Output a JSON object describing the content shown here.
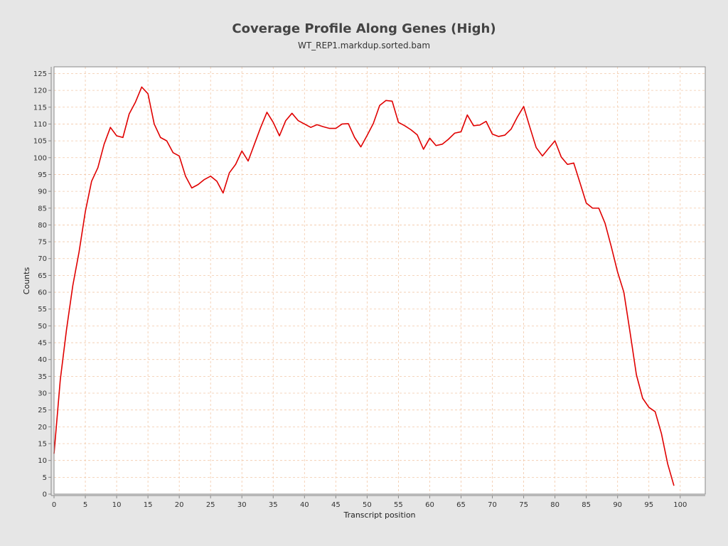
{
  "chart_data": {
    "type": "line",
    "title": "Coverage Profile Along Genes (High)",
    "subtitle": "WT_REP1.markdup.sorted.bam",
    "xlabel": "Transcript position",
    "ylabel": "Counts",
    "xlim": [
      0,
      104
    ],
    "ylim": [
      0,
      127
    ],
    "x_ticks": [
      0,
      5,
      10,
      15,
      20,
      25,
      30,
      35,
      40,
      45,
      50,
      55,
      60,
      65,
      70,
      75,
      80,
      85,
      90,
      95,
      100
    ],
    "y_ticks": [
      0,
      5,
      10,
      15,
      20,
      25,
      30,
      35,
      40,
      45,
      50,
      55,
      60,
      65,
      70,
      75,
      80,
      85,
      90,
      95,
      100,
      105,
      110,
      115,
      120,
      125
    ],
    "grid": true,
    "colors": {
      "background": "#e6e6e6",
      "plot_background": "#ffffff",
      "gridline": "#f2c8a8",
      "series": "#e00000"
    },
    "series": [
      {
        "x": [
          0,
          1,
          2,
          3,
          4,
          5,
          6,
          7,
          8,
          9,
          10,
          11,
          12,
          13,
          14,
          15,
          16,
          17,
          18,
          19,
          20,
          21,
          22,
          23,
          24,
          25,
          26,
          27,
          28,
          29,
          30,
          31,
          32,
          33,
          34,
          35,
          36,
          37,
          38,
          39,
          40,
          41,
          42,
          43,
          44,
          45,
          46,
          47,
          48,
          49,
          50,
          51,
          52,
          53,
          54,
          55,
          56,
          57,
          58,
          59,
          60,
          61,
          62,
          63,
          64,
          65,
          66,
          67,
          68,
          69,
          70,
          71,
          72,
          73,
          74,
          75,
          76,
          77,
          78,
          79,
          80,
          81,
          82,
          83,
          84,
          85,
          86,
          87,
          88,
          89,
          90,
          91,
          92,
          93,
          94,
          95,
          96,
          97,
          98,
          99
        ],
        "y": [
          12,
          34,
          49,
          62,
          72,
          84,
          93,
          97,
          104,
          109,
          106.5,
          106,
          113,
          116.5,
          121,
          119,
          110,
          106,
          105,
          101.5,
          100.5,
          94.5,
          91,
          92,
          93.5,
          94.5,
          93,
          89.5,
          95.5,
          98,
          102,
          99,
          104,
          109,
          113.5,
          110.5,
          106.5,
          111,
          113.2,
          111,
          110,
          109,
          109.8,
          109.2,
          108.7,
          108.7,
          110,
          110.1,
          106,
          103.2,
          106.6,
          110.2,
          115.5,
          117,
          116.8,
          110.5,
          109.5,
          108.3,
          106.8,
          102.5,
          105.8,
          103.6,
          104,
          105.5,
          107.3,
          107.7,
          112.7,
          109.5,
          109.7,
          110.8,
          107,
          106.3,
          106.7,
          108.5,
          112.1,
          115.2,
          109,
          103,
          100.5,
          102.8,
          105,
          100.2,
          98,
          98.4,
          92.5,
          86.5,
          85,
          85,
          80.5,
          73.5,
          66,
          60,
          48,
          35.5,
          28.5,
          25.8,
          24.5,
          18,
          9,
          2.5
        ]
      }
    ]
  }
}
